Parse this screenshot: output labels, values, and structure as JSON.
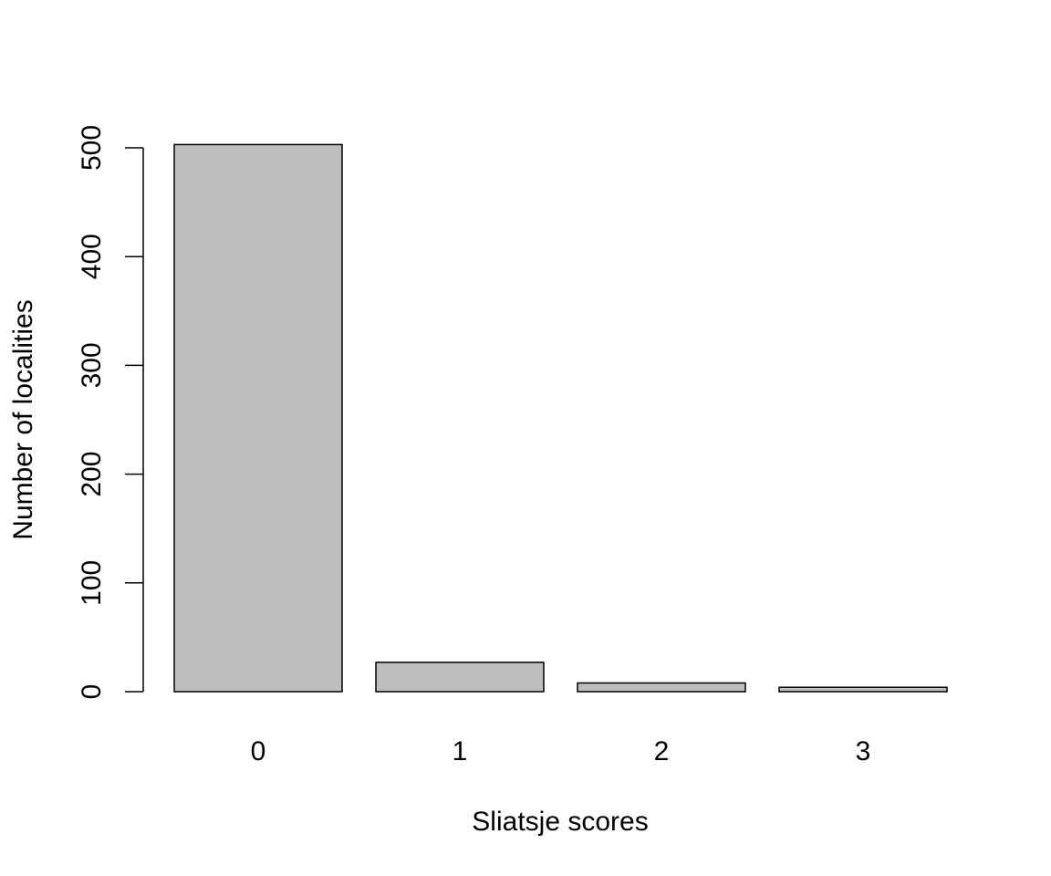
{
  "chart_data": {
    "type": "bar",
    "title": "",
    "xlabel": "Sliatsje scores",
    "ylabel": "Number of localities",
    "categories": [
      "0",
      "1",
      "2",
      "3"
    ],
    "values": [
      503,
      27,
      8,
      4
    ],
    "ylim": [
      0,
      500
    ],
    "yticks": [
      0,
      100,
      200,
      300,
      400,
      500
    ],
    "grid": false,
    "legend": "none",
    "bar_color": "#bebebe",
    "border_color": "#000000"
  }
}
